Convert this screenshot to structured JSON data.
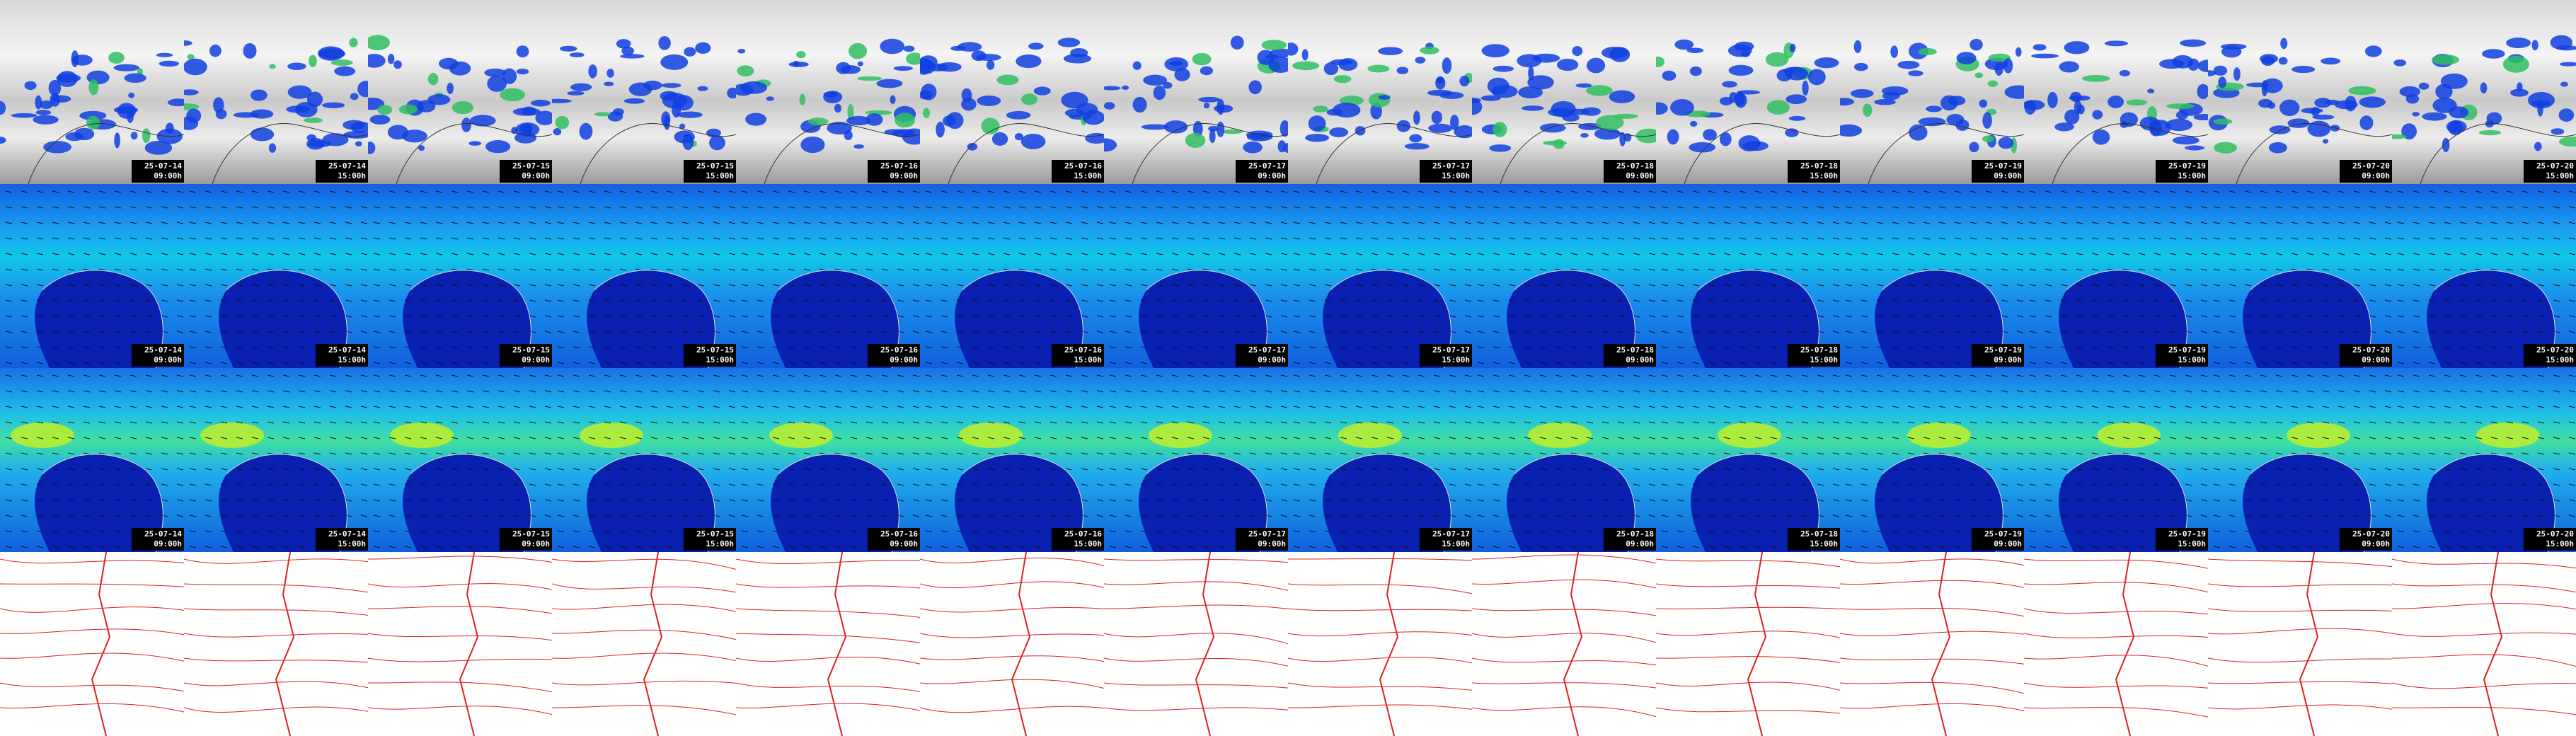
{
  "columns": [
    {
      "date": "25-07-14",
      "time": "09:00h"
    },
    {
      "date": "25-07-14",
      "time": "15:00h"
    },
    {
      "date": "25-07-15",
      "time": "09:00h"
    },
    {
      "date": "25-07-15",
      "time": "15:00h"
    },
    {
      "date": "25-07-16",
      "time": "09:00h"
    },
    {
      "date": "25-07-16",
      "time": "15:00h"
    },
    {
      "date": "25-07-17",
      "time": "09:00h"
    },
    {
      "date": "25-07-17",
      "time": "15:00h"
    },
    {
      "date": "25-07-18",
      "time": "09:00h"
    },
    {
      "date": "25-07-18",
      "time": "15:00h"
    },
    {
      "date": "25-07-19",
      "time": "09:00h"
    },
    {
      "date": "25-07-19",
      "time": "15:00h"
    },
    {
      "date": "25-07-20",
      "time": "09:00h"
    },
    {
      "date": "25-07-20",
      "time": "15:00h"
    }
  ]
}
